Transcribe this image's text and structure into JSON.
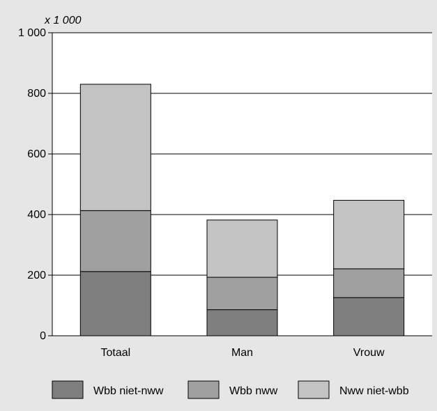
{
  "chart_data": {
    "type": "bar",
    "stacked": true,
    "unit_label": "x 1 000",
    "title": "",
    "xlabel": "",
    "ylabel": "",
    "categories": [
      "Totaal",
      "Man",
      "Vrouw"
    ],
    "series": [
      {
        "name": "Wbb niet-nww",
        "color": "#7f7f7f",
        "values": [
          212,
          86,
          126
        ]
      },
      {
        "name": "Wbb nww",
        "color": "#a0a0a0",
        "values": [
          201,
          107,
          95
        ]
      },
      {
        "name": "Nww niet-wbb",
        "color": "#c3c3c3",
        "values": [
          417,
          189,
          226
        ]
      }
    ],
    "ylim": [
      0,
      1000
    ],
    "yticks": [
      0,
      200,
      400,
      600,
      800,
      1000
    ],
    "ytick_labels": [
      "0",
      "200",
      "400",
      "600",
      "800",
      "1 000"
    ],
    "grid": true,
    "legend_position": "bottom",
    "colors": {
      "background": "#e6e6e6",
      "plot_area": "#ffffff",
      "stroke": "#000000"
    }
  }
}
